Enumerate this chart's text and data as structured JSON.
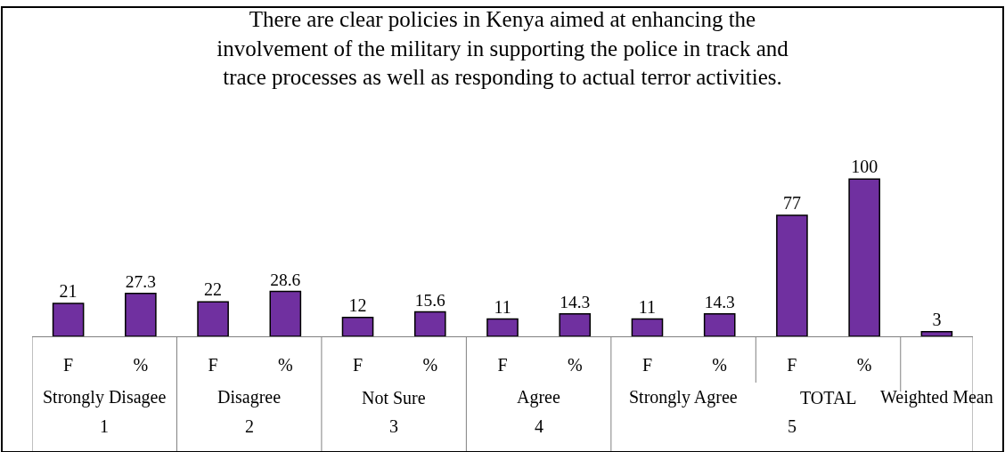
{
  "chart_data": {
    "type": "bar",
    "title": "There are clear policies in Kenya aimed at enhancing the involvement of the military in supporting the police in track and trace processes as well as responding to actual terror activities.",
    "categories": [
      "F",
      "%",
      "F",
      "%",
      "F",
      "%",
      "F",
      "%",
      "F",
      "%",
      "F",
      "%",
      null
    ],
    "values": [
      21,
      27.3,
      22,
      28.6,
      12,
      15.6,
      11,
      14.3,
      11,
      14.3,
      77,
      100,
      3
    ],
    "color": "#7030a0",
    "data_labels": true,
    "legend": false,
    "annotations": [
      "Strongly Disagee",
      "Disagree",
      "Not Sure",
      "Agree",
      "Strongly Agree",
      "TOTAL",
      "Weighted Mean",
      "1",
      "2",
      "3",
      "4",
      "5"
    ]
  }
}
